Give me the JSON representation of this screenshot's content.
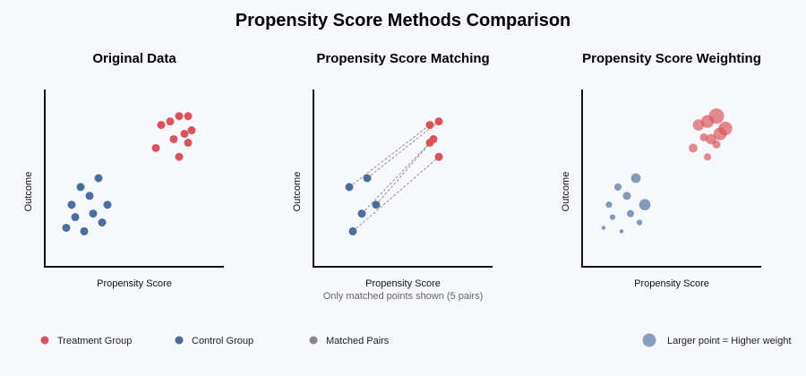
{
  "title": "Propensity Score Methods Comparison",
  "colors": {
    "treatment": "#d9545a",
    "control": "#4a6f9c",
    "matched": "#888888",
    "axis": "#111111"
  },
  "chart_data": [
    {
      "type": "scatter",
      "title": "Original Data",
      "xlabel": "Propensity Score",
      "ylabel": "Outcome",
      "xlim": [
        0,
        100
      ],
      "ylim": [
        0,
        100
      ],
      "grid": false,
      "series": [
        {
          "name": "Treatment Group",
          "group": "treatment",
          "points": [
            [
              65,
              80
            ],
            [
              70,
              82
            ],
            [
              75,
              85
            ],
            [
              80,
              85
            ],
            [
              72,
              72
            ],
            [
              62,
              67
            ],
            [
              75,
              62
            ],
            [
              80,
              70
            ],
            [
              78,
              75
            ],
            [
              82,
              77
            ]
          ]
        },
        {
          "name": "Control Group",
          "group": "control",
          "points": [
            [
              30,
              50
            ],
            [
              20,
              45
            ],
            [
              25,
              40
            ],
            [
              15,
              35
            ],
            [
              35,
              35
            ],
            [
              17,
              28
            ],
            [
              27,
              30
            ],
            [
              12,
              22
            ],
            [
              32,
              25
            ],
            [
              22,
              20
            ]
          ]
        }
      ]
    },
    {
      "type": "scatter",
      "title": "Propensity Score Matching",
      "xlabel": "Propensity Score",
      "ylabel": "Outcome",
      "note": "Only matched points shown (5 pairs)",
      "xlim": [
        0,
        100
      ],
      "ylim": [
        0,
        100
      ],
      "grid": false,
      "series": [
        {
          "name": "Treatment Group",
          "group": "treatment",
          "points": [
            [
              65,
              80
            ],
            [
              70,
              82
            ],
            [
              67,
              72
            ],
            [
              65,
              70
            ],
            [
              70,
              62
            ]
          ]
        },
        {
          "name": "Control Group",
          "group": "control",
          "points": [
            [
              20,
              45
            ],
            [
              30,
              50
            ],
            [
              35,
              35
            ],
            [
              27,
              30
            ],
            [
              22,
              20
            ]
          ]
        }
      ],
      "pairs": [
        [
          0,
          0
        ],
        [
          1,
          1
        ],
        [
          2,
          2
        ],
        [
          3,
          3
        ],
        [
          4,
          4
        ]
      ]
    },
    {
      "type": "scatter",
      "title": "Propensity Score Weighting",
      "xlabel": "Propensity Score",
      "ylabel": "Outcome",
      "xlim": [
        0,
        100
      ],
      "ylim": [
        0,
        100
      ],
      "grid": false,
      "series": [
        {
          "name": "Treatment Group",
          "group": "treatment",
          "points": [
            [
              65,
              80
            ],
            [
              70,
              82
            ],
            [
              75,
              85
            ],
            [
              80,
              78
            ],
            [
              72,
              72
            ],
            [
              62,
              67
            ],
            [
              70,
              62
            ],
            [
              75,
              69
            ],
            [
              77,
              75
            ],
            [
              68,
              73
            ]
          ],
          "weights": [
            1.4,
            1.6,
            1.9,
            1.7,
            1.3,
            1.1,
            0.9,
            1.0,
            1.6,
            1.0
          ]
        },
        {
          "name": "Control Group",
          "group": "control",
          "points": [
            [
              30,
              50
            ],
            [
              20,
              45
            ],
            [
              25,
              40
            ],
            [
              15,
              35
            ],
            [
              35,
              35
            ],
            [
              17,
              28
            ],
            [
              27,
              30
            ],
            [
              12,
              22
            ],
            [
              32,
              25
            ],
            [
              22,
              20
            ]
          ],
          "weights": [
            1.2,
            0.9,
            1.0,
            0.8,
            1.4,
            0.7,
            0.9,
            0.5,
            0.7,
            0.5
          ]
        }
      ]
    }
  ],
  "legend": {
    "items": [
      {
        "label": "Treatment Group",
        "color": "#d9545a"
      },
      {
        "label": "Control Group",
        "color": "#4a6f9c"
      },
      {
        "label": "Matched Pairs",
        "color": "#888888"
      }
    ],
    "weight_note": "Larger point = Higher weight"
  }
}
